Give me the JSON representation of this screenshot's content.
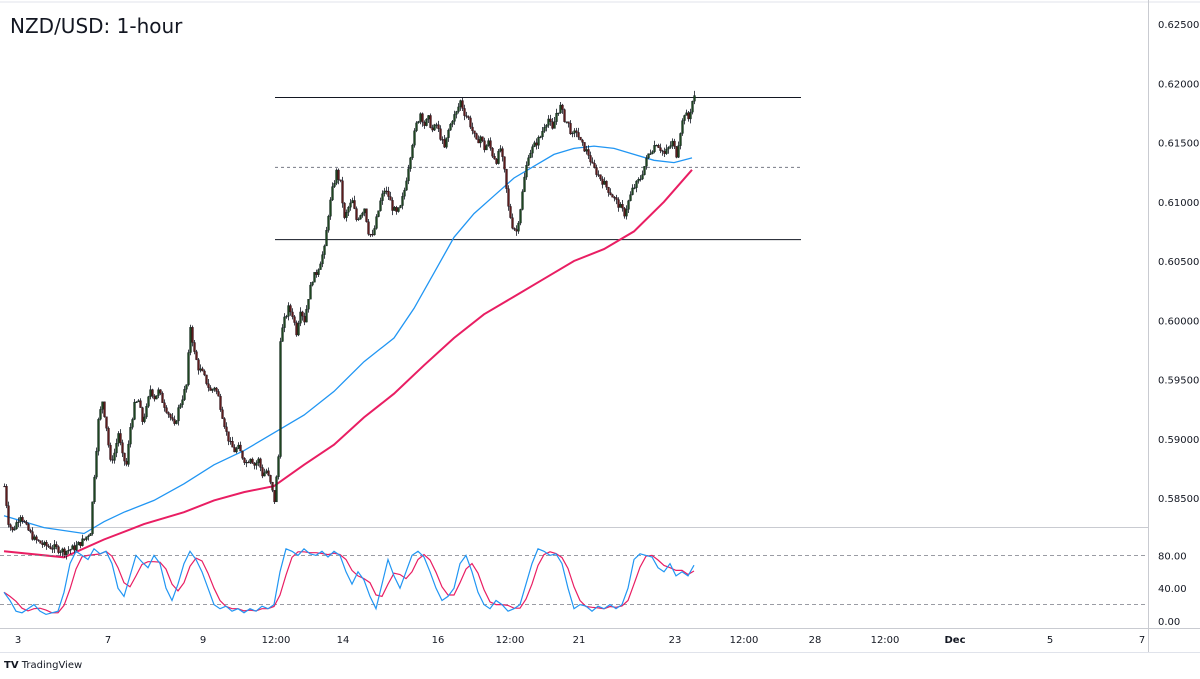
{
  "title": "NZD/USD: 1-hour",
  "brand": "TradingView",
  "chart_data": [
    {
      "type": "candlestick",
      "title": "NZD/USD: 1-hour",
      "y_ticks": [
        "0.62500",
        "0.62000",
        "0.61500",
        "0.61000",
        "0.60500",
        "0.60000",
        "0.59500",
        "0.59000",
        "0.58500"
      ],
      "ylim": [
        0.5813,
        0.628
      ],
      "x_ticks": [
        "3",
        "7",
        "9",
        "12:00",
        "14",
        "16",
        "12:00",
        "21",
        "23",
        "12:00",
        "28",
        "12:00",
        "Dec",
        "5",
        "7"
      ],
      "horizontal_levels": [
        {
          "value": 0.6188,
          "style": "solid",
          "color": "#131722"
        },
        {
          "value": 0.6129,
          "style": "dashed",
          "color": "#787b86"
        },
        {
          "value": 0.6068,
          "style": "solid",
          "color": "#131722"
        }
      ],
      "price_path": [
        [
          0,
          0.586
        ],
        [
          4,
          0.583
        ],
        [
          8,
          0.5822
        ],
        [
          16,
          0.5836
        ],
        [
          22,
          0.5825
        ],
        [
          30,
          0.5815
        ],
        [
          40,
          0.581
        ],
        [
          50,
          0.5808
        ],
        [
          60,
          0.5805
        ],
        [
          70,
          0.5808
        ],
        [
          80,
          0.5815
        ],
        [
          86,
          0.5822
        ],
        [
          90,
          0.587
        ],
        [
          94,
          0.5915
        ],
        [
          98,
          0.5932
        ],
        [
          102,
          0.591
        ],
        [
          106,
          0.588
        ],
        [
          110,
          0.5888
        ],
        [
          114,
          0.5905
        ],
        [
          118,
          0.5885
        ],
        [
          122,
          0.5878
        ],
        [
          126,
          0.591
        ],
        [
          130,
          0.5928
        ],
        [
          134,
          0.5932
        ],
        [
          138,
          0.5915
        ],
        [
          142,
          0.5925
        ],
        [
          146,
          0.5942
        ],
        [
          150,
          0.5935
        ],
        [
          154,
          0.594
        ],
        [
          158,
          0.5932
        ],
        [
          162,
          0.5925
        ],
        [
          166,
          0.5918
        ],
        [
          170,
          0.591
        ],
        [
          174,
          0.5925
        ],
        [
          178,
          0.5935
        ],
        [
          182,
          0.5945
        ],
        [
          186,
          0.5995
        ],
        [
          190,
          0.5972
        ],
        [
          194,
          0.596
        ],
        [
          198,
          0.5955
        ],
        [
          202,
          0.5948
        ],
        [
          206,
          0.594
        ],
        [
          210,
          0.5944
        ],
        [
          214,
          0.5935
        ],
        [
          218,
          0.592
        ],
        [
          222,
          0.5905
        ],
        [
          226,
          0.5895
        ],
        [
          230,
          0.589
        ],
        [
          234,
          0.5892
        ],
        [
          238,
          0.5885
        ],
        [
          242,
          0.588
        ],
        [
          246,
          0.5885
        ],
        [
          250,
          0.5878
        ],
        [
          254,
          0.5882
        ],
        [
          258,
          0.587
        ],
        [
          262,
          0.5873
        ],
        [
          266,
          0.5862
        ],
        [
          270,
          0.5848
        ],
        [
          274,
          0.5885
        ],
        [
          276,
          0.5985
        ],
        [
          280,
          0.6
        ],
        [
          284,
          0.601
        ],
        [
          288,
          0.6005
        ],
        [
          292,
          0.599
        ],
        [
          296,
          0.601
        ],
        [
          300,
          0.6
        ],
        [
          304,
          0.602
        ],
        [
          308,
          0.6035
        ],
        [
          312,
          0.604
        ],
        [
          316,
          0.605
        ],
        [
          320,
          0.606
        ],
        [
          324,
          0.609
        ],
        [
          328,
          0.611
        ],
        [
          332,
          0.6125
        ],
        [
          336,
          0.6115
        ],
        [
          340,
          0.6085
        ],
        [
          344,
          0.6095
        ],
        [
          348,
          0.61
        ],
        [
          352,
          0.6085
        ],
        [
          356,
          0.609
        ],
        [
          360,
          0.6095
        ],
        [
          364,
          0.6075
        ],
        [
          368,
          0.607
        ],
        [
          372,
          0.6085
        ],
        [
          376,
          0.61
        ],
        [
          380,
          0.611
        ],
        [
          384,
          0.6105
        ],
        [
          388,
          0.6095
        ],
        [
          392,
          0.609
        ],
        [
          396,
          0.6095
        ],
        [
          400,
          0.611
        ],
        [
          404,
          0.613
        ],
        [
          408,
          0.615
        ],
        [
          412,
          0.6165
        ],
        [
          416,
          0.6175
        ],
        [
          420,
          0.6165
        ],
        [
          424,
          0.617
        ],
        [
          428,
          0.616
        ],
        [
          432,
          0.6165
        ],
        [
          436,
          0.6155
        ],
        [
          440,
          0.6145
        ],
        [
          444,
          0.616
        ],
        [
          448,
          0.617
        ],
        [
          452,
          0.6175
        ],
        [
          456,
          0.6185
        ],
        [
          460,
          0.6175
        ],
        [
          464,
          0.617
        ],
        [
          468,
          0.616
        ],
        [
          472,
          0.615
        ],
        [
          476,
          0.6155
        ],
        [
          480,
          0.6145
        ],
        [
          484,
          0.615
        ],
        [
          488,
          0.614
        ],
        [
          492,
          0.6135
        ],
        [
          496,
          0.6145
        ],
        [
          500,
          0.6125
        ],
        [
          504,
          0.6095
        ],
        [
          508,
          0.608
        ],
        [
          512,
          0.6075
        ],
        [
          516,
          0.6095
        ],
        [
          520,
          0.612
        ],
        [
          524,
          0.614
        ],
        [
          528,
          0.6145
        ],
        [
          532,
          0.615
        ],
        [
          536,
          0.6155
        ],
        [
          540,
          0.6165
        ],
        [
          544,
          0.617
        ],
        [
          548,
          0.616
        ],
        [
          552,
          0.6175
        ],
        [
          556,
          0.618
        ],
        [
          560,
          0.617
        ],
        [
          564,
          0.6165
        ],
        [
          568,
          0.6155
        ],
        [
          572,
          0.616
        ],
        [
          576,
          0.615
        ],
        [
          580,
          0.6145
        ],
        [
          584,
          0.614
        ],
        [
          588,
          0.613
        ],
        [
          592,
          0.6125
        ],
        [
          596,
          0.612
        ],
        [
          600,
          0.6115
        ],
        [
          604,
          0.611
        ],
        [
          608,
          0.6105
        ],
        [
          612,
          0.61
        ],
        [
          616,
          0.6095
        ],
        [
          620,
          0.609
        ],
        [
          624,
          0.61
        ],
        [
          628,
          0.611
        ],
        [
          632,
          0.6115
        ],
        [
          636,
          0.612
        ],
        [
          640,
          0.613
        ],
        [
          644,
          0.614
        ],
        [
          648,
          0.6145
        ],
        [
          652,
          0.615
        ],
        [
          656,
          0.6145
        ],
        [
          660,
          0.614
        ],
        [
          664,
          0.6145
        ],
        [
          668,
          0.615
        ],
        [
          672,
          0.614
        ],
        [
          676,
          0.616
        ],
        [
          680,
          0.6175
        ],
        [
          684,
          0.617
        ],
        [
          688,
          0.6185
        ],
        [
          690,
          0.6188
        ]
      ],
      "ma_blue": {
        "color": "#2196f3",
        "points": [
          [
            0,
            0.5835
          ],
          [
            40,
            0.5825
          ],
          [
            80,
            0.582
          ],
          [
            100,
            0.583
          ],
          [
            120,
            0.5838
          ],
          [
            150,
            0.5848
          ],
          [
            180,
            0.5862
          ],
          [
            210,
            0.5878
          ],
          [
            240,
            0.589
          ],
          [
            270,
            0.5905
          ],
          [
            300,
            0.592
          ],
          [
            330,
            0.594
          ],
          [
            360,
            0.5965
          ],
          [
            390,
            0.5985
          ],
          [
            410,
            0.601
          ],
          [
            430,
            0.604
          ],
          [
            450,
            0.607
          ],
          [
            470,
            0.609
          ],
          [
            490,
            0.6105
          ],
          [
            510,
            0.612
          ],
          [
            530,
            0.613
          ],
          [
            550,
            0.614
          ],
          [
            570,
            0.6145
          ],
          [
            590,
            0.6147
          ],
          [
            610,
            0.6145
          ],
          [
            630,
            0.614
          ],
          [
            650,
            0.6135
          ],
          [
            670,
            0.6133
          ],
          [
            688,
            0.6137
          ]
        ]
      },
      "ma_magenta": {
        "color": "#e91e63",
        "points": [
          [
            0,
            0.5805
          ],
          [
            60,
            0.58
          ],
          [
            100,
            0.5815
          ],
          [
            140,
            0.5828
          ],
          [
            180,
            0.5838
          ],
          [
            210,
            0.5848
          ],
          [
            240,
            0.5855
          ],
          [
            270,
            0.586
          ],
          [
            300,
            0.5878
          ],
          [
            330,
            0.5895
          ],
          [
            360,
            0.5918
          ],
          [
            390,
            0.5938
          ],
          [
            420,
            0.5962
          ],
          [
            450,
            0.5985
          ],
          [
            480,
            0.6005
          ],
          [
            510,
            0.602
          ],
          [
            540,
            0.6035
          ],
          [
            570,
            0.605
          ],
          [
            600,
            0.606
          ],
          [
            630,
            0.6075
          ],
          [
            660,
            0.61
          ],
          [
            688,
            0.6127
          ]
        ]
      },
      "oscillator": {
        "y_ticks": [
          "80.00",
          "40.00",
          "0.00"
        ],
        "levels": [
          80,
          20
        ],
        "ylim": [
          0,
          100
        ],
        "k_color": "#2196f3",
        "d_color": "#e91e63",
        "k_points": [
          [
            0,
            35
          ],
          [
            6,
            25
          ],
          [
            12,
            12
          ],
          [
            18,
            10
          ],
          [
            24,
            15
          ],
          [
            30,
            20
          ],
          [
            36,
            12
          ],
          [
            42,
            8
          ],
          [
            48,
            10
          ],
          [
            54,
            12
          ],
          [
            60,
            35
          ],
          [
            66,
            70
          ],
          [
            72,
            85
          ],
          [
            78,
            80
          ],
          [
            84,
            75
          ],
          [
            90,
            88
          ],
          [
            96,
            82
          ],
          [
            102,
            85
          ],
          [
            108,
            70
          ],
          [
            114,
            40
          ],
          [
            120,
            30
          ],
          [
            126,
            55
          ],
          [
            132,
            80
          ],
          [
            138,
            72
          ],
          [
            144,
            65
          ],
          [
            150,
            80
          ],
          [
            156,
            70
          ],
          [
            162,
            40
          ],
          [
            168,
            25
          ],
          [
            174,
            45
          ],
          [
            180,
            70
          ],
          [
            186,
            85
          ],
          [
            192,
            75
          ],
          [
            198,
            60
          ],
          [
            204,
            40
          ],
          [
            210,
            20
          ],
          [
            216,
            15
          ],
          [
            222,
            18
          ],
          [
            228,
            12
          ],
          [
            234,
            15
          ],
          [
            240,
            10
          ],
          [
            246,
            15
          ],
          [
            252,
            12
          ],
          [
            258,
            18
          ],
          [
            264,
            15
          ],
          [
            270,
            20
          ],
          [
            276,
            60
          ],
          [
            282,
            88
          ],
          [
            288,
            85
          ],
          [
            294,
            80
          ],
          [
            300,
            88
          ],
          [
            306,
            82
          ],
          [
            312,
            80
          ],
          [
            318,
            85
          ],
          [
            324,
            78
          ],
          [
            330,
            85
          ],
          [
            336,
            80
          ],
          [
            342,
            60
          ],
          [
            348,
            45
          ],
          [
            354,
            60
          ],
          [
            360,
            50
          ],
          [
            366,
            30
          ],
          [
            372,
            15
          ],
          [
            378,
            45
          ],
          [
            384,
            75
          ],
          [
            390,
            55
          ],
          [
            396,
            40
          ],
          [
            402,
            60
          ],
          [
            408,
            80
          ],
          [
            414,
            85
          ],
          [
            420,
            78
          ],
          [
            426,
            60
          ],
          [
            432,
            40
          ],
          [
            438,
            25
          ],
          [
            444,
            30
          ],
          [
            450,
            40
          ],
          [
            456,
            70
          ],
          [
            462,
            80
          ],
          [
            468,
            60
          ],
          [
            474,
            35
          ],
          [
            480,
            20
          ],
          [
            486,
            15
          ],
          [
            492,
            25
          ],
          [
            498,
            20
          ],
          [
            504,
            12
          ],
          [
            510,
            15
          ],
          [
            516,
            20
          ],
          [
            522,
            45
          ],
          [
            528,
            70
          ],
          [
            534,
            88
          ],
          [
            540,
            85
          ],
          [
            546,
            80
          ],
          [
            552,
            82
          ],
          [
            558,
            70
          ],
          [
            564,
            40
          ],
          [
            570,
            15
          ],
          [
            576,
            20
          ],
          [
            582,
            18
          ],
          [
            588,
            12
          ],
          [
            594,
            18
          ],
          [
            600,
            15
          ],
          [
            606,
            20
          ],
          [
            612,
            15
          ],
          [
            618,
            20
          ],
          [
            624,
            40
          ],
          [
            630,
            75
          ],
          [
            636,
            82
          ],
          [
            642,
            80
          ],
          [
            648,
            78
          ],
          [
            654,
            65
          ],
          [
            660,
            60
          ],
          [
            666,
            70
          ],
          [
            672,
            55
          ],
          [
            678,
            60
          ],
          [
            684,
            55
          ],
          [
            690,
            68
          ]
        ]
      }
    }
  ]
}
